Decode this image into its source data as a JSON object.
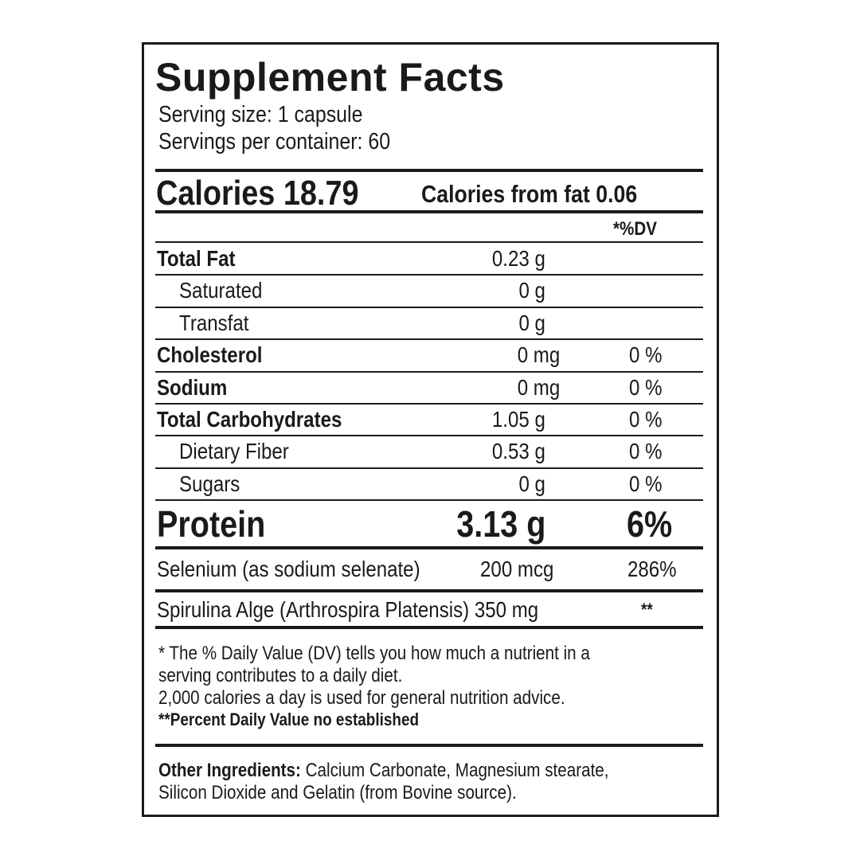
{
  "title": "Supplement Facts",
  "serving_size": "Serving size: 1 capsule",
  "servings_per_container": "Servings per container: 60",
  "calories": "Calories 18.79",
  "calories_from_fat": "Calories from fat 0.06",
  "dv_header": "*%DV",
  "rows": [
    {
      "name": "Total Fat",
      "amount": "0.23 g",
      "dv": "",
      "bold": true,
      "indent": false
    },
    {
      "name": "Saturated",
      "amount": "0 g",
      "dv": "",
      "bold": false,
      "indent": true
    },
    {
      "name": "Transfat",
      "amount": "0 g",
      "dv": "",
      "bold": false,
      "indent": true
    },
    {
      "name": "Cholesterol",
      "amount": "0 mg",
      "dv": "0 %",
      "bold": true,
      "indent": false
    },
    {
      "name": "Sodium",
      "amount": "0 mg",
      "dv": "0 %",
      "bold": true,
      "indent": false
    },
    {
      "name": "Total Carbohydrates",
      "amount": "1.05 g",
      "dv": "0 %",
      "bold": true,
      "indent": false
    },
    {
      "name": "Dietary Fiber",
      "amount": "0.53 g",
      "dv": "0 %",
      "bold": false,
      "indent": true
    },
    {
      "name": "Sugars",
      "amount": "0 g",
      "dv": "0 %",
      "bold": false,
      "indent": true
    }
  ],
  "protein": {
    "name": "Protein",
    "amount": "3.13 g",
    "dv": "6%"
  },
  "selenium": {
    "name": "Selenium (as sodium selenate)",
    "amount": "200 mcg",
    "dv": "286%"
  },
  "spirulina": {
    "name": "Spirulina Alge (Arthrospira Platensis) 350 mg",
    "dv": "**"
  },
  "footnotes": [
    "* The % Daily Value (DV) tells you how much a nutrient in a",
    "serving contributes to a daily diet.",
    "2,000 calories a day is used for general nutrition advice.",
    "**Percent Daily Value no established"
  ],
  "other_ingredients": {
    "label": "Other Ingredients:",
    "line1": " Calcium Carbonate, Magnesium stearate,",
    "line2": "Silicon Dioxide and Gelatin (from Bovine source)."
  }
}
